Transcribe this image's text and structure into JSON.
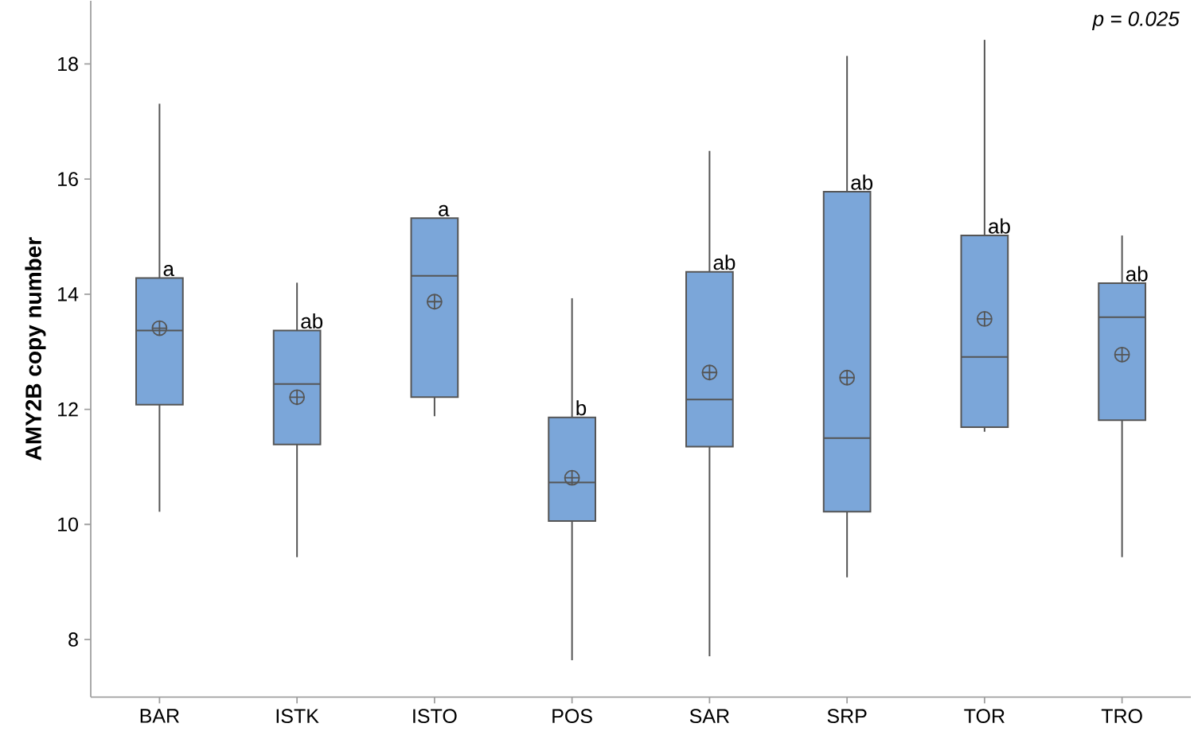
{
  "chart_data": {
    "type": "box",
    "ylabel": "AMY2B copy number",
    "categories": [
      "BAR",
      "ISTK",
      "ISTO",
      "POS",
      "SAR",
      "SRP",
      "TOR",
      "TRO"
    ],
    "color": "#7ba6d9",
    "boxes": [
      {
        "low": 10.22,
        "q1": 12.08,
        "median": 13.37,
        "q3": 14.28,
        "high": 17.31,
        "mean": 13.41
      },
      {
        "low": 9.43,
        "q1": 11.39,
        "median": 12.44,
        "q3": 13.37,
        "high": 14.2,
        "mean": 12.21
      },
      {
        "low": 11.88,
        "q1": 12.21,
        "median": 14.32,
        "q3": 15.32,
        "high": 15.32,
        "mean": 13.87
      },
      {
        "low": 7.64,
        "q1": 10.06,
        "median": 10.73,
        "q3": 11.86,
        "high": 13.93,
        "mean": 10.81
      },
      {
        "low": 7.71,
        "q1": 11.35,
        "median": 12.17,
        "q3": 14.39,
        "high": 16.49,
        "mean": 12.64
      },
      {
        "low": 9.08,
        "q1": 10.22,
        "median": 11.5,
        "q3": 15.78,
        "high": 18.14,
        "mean": 12.55
      },
      {
        "low": 11.61,
        "q1": 11.69,
        "median": 12.91,
        "q3": 15.02,
        "high": 18.42,
        "mean": 13.57
      },
      {
        "low": 9.43,
        "q1": 11.81,
        "median": 13.6,
        "q3": 14.19,
        "high": 15.02,
        "mean": 12.95
      }
    ],
    "ylim": [
      7,
      19.1
    ],
    "yticks": [
      8,
      10,
      12,
      14,
      16,
      18
    ],
    "annotations": [
      "a",
      "ab",
      "a",
      "b",
      "ab",
      "ab",
      "ab",
      "ab",
      "p = 0.025"
    ]
  }
}
